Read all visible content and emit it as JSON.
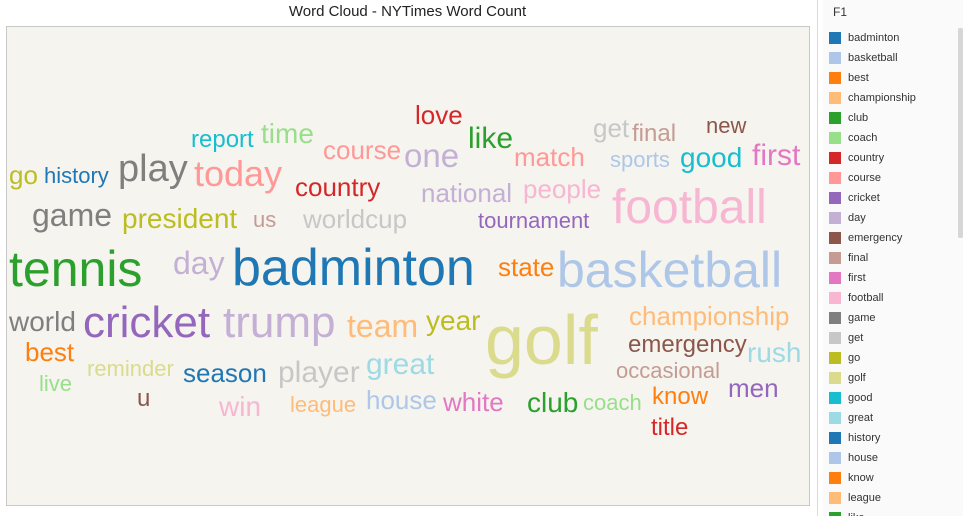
{
  "chart_data": {
    "type": "wordcloud",
    "title": "Word Cloud - NYTimes Word Count",
    "words": [
      {
        "text": "go",
        "color": "#bcbd22",
        "size": 26
      },
      {
        "text": "history",
        "color": "#1f77b4",
        "size": 22
      },
      {
        "text": "play",
        "color": "#7f7f7f",
        "size": 38
      },
      {
        "text": "report",
        "color": "#17becf",
        "size": 24
      },
      {
        "text": "time",
        "color": "#98df8a",
        "size": 28
      },
      {
        "text": "today",
        "color": "#ff9896",
        "size": 36
      },
      {
        "text": "course",
        "color": "#ff9896",
        "size": 26
      },
      {
        "text": "love",
        "color": "#d62728",
        "size": 26
      },
      {
        "text": "one",
        "color": "#c5b0d5",
        "size": 33
      },
      {
        "text": "like",
        "color": "#2ca02c",
        "size": 30
      },
      {
        "text": "match",
        "color": "#ff9896",
        "size": 26
      },
      {
        "text": "get",
        "color": "#c7c7c7",
        "size": 26
      },
      {
        "text": "final",
        "color": "#c49c94",
        "size": 24
      },
      {
        "text": "new",
        "color": "#8c564b",
        "size": 22
      },
      {
        "text": "sports",
        "color": "#aec7e8",
        "size": 22
      },
      {
        "text": "good",
        "color": "#17becf",
        "size": 28
      },
      {
        "text": "first",
        "color": "#e377c2",
        "size": 30
      },
      {
        "text": "country",
        "color": "#d62728",
        "size": 26
      },
      {
        "text": "national",
        "color": "#c5b0d5",
        "size": 26
      },
      {
        "text": "people",
        "color": "#f7b6d2",
        "size": 26
      },
      {
        "text": "football",
        "color": "#f7b6d2",
        "size": 48
      },
      {
        "text": "game",
        "color": "#7f7f7f",
        "size": 32
      },
      {
        "text": "president",
        "color": "#bcbd22",
        "size": 28
      },
      {
        "text": "us",
        "color": "#c49c94",
        "size": 22
      },
      {
        "text": "worldcup",
        "color": "#c7c7c7",
        "size": 26
      },
      {
        "text": "tournament",
        "color": "#9467bd",
        "size": 22
      },
      {
        "text": "tennis",
        "color": "#2ca02c",
        "size": 50
      },
      {
        "text": "day",
        "color": "#c5b0d5",
        "size": 32
      },
      {
        "text": "badminton",
        "color": "#1f77b4",
        "size": 52
      },
      {
        "text": "state",
        "color": "#ff7f0e",
        "size": 26
      },
      {
        "text": "basketball",
        "color": "#aec7e8",
        "size": 50
      },
      {
        "text": "world",
        "color": "#7f7f7f",
        "size": 28
      },
      {
        "text": "cricket",
        "color": "#9467bd",
        "size": 44
      },
      {
        "text": "trump",
        "color": "#c5b0d5",
        "size": 44
      },
      {
        "text": "team",
        "color": "#ffbb78",
        "size": 32
      },
      {
        "text": "year",
        "color": "#bcbd22",
        "size": 28
      },
      {
        "text": "golf",
        "color": "#dbdb8d",
        "size": 70
      },
      {
        "text": "championship",
        "color": "#ffbb78",
        "size": 26
      },
      {
        "text": "best",
        "color": "#ff7f0e",
        "size": 26
      },
      {
        "text": "emergency",
        "color": "#8c564b",
        "size": 24
      },
      {
        "text": "rush",
        "color": "#9edae5",
        "size": 28
      },
      {
        "text": "live",
        "color": "#98df8a",
        "size": 22
      },
      {
        "text": "reminder",
        "color": "#dbdb8d",
        "size": 22
      },
      {
        "text": "season",
        "color": "#1f77b4",
        "size": 26
      },
      {
        "text": "player",
        "color": "#c7c7c7",
        "size": 30
      },
      {
        "text": "great",
        "color": "#9edae5",
        "size": 30
      },
      {
        "text": "occasional",
        "color": "#c49c94",
        "size": 22
      },
      {
        "text": "men",
        "color": "#9467bd",
        "size": 26
      },
      {
        "text": "u",
        "color": "#8c564b",
        "size": 24
      },
      {
        "text": "win",
        "color": "#f7b6d2",
        "size": 28
      },
      {
        "text": "league",
        "color": "#ffbb78",
        "size": 22
      },
      {
        "text": "house",
        "color": "#aec7e8",
        "size": 26
      },
      {
        "text": "white",
        "color": "#e377c2",
        "size": 26
      },
      {
        "text": "club",
        "color": "#2ca02c",
        "size": 28
      },
      {
        "text": "coach",
        "color": "#98df8a",
        "size": 22
      },
      {
        "text": "know",
        "color": "#ff7f0e",
        "size": 24
      },
      {
        "text": "title",
        "color": "#d62728",
        "size": 24
      }
    ]
  },
  "legend": {
    "title": "F1",
    "items": [
      {
        "label": "badminton",
        "color": "#1f77b4"
      },
      {
        "label": "basketball",
        "color": "#aec7e8"
      },
      {
        "label": "best",
        "color": "#ff7f0e"
      },
      {
        "label": "championship",
        "color": "#ffbb78"
      },
      {
        "label": "club",
        "color": "#2ca02c"
      },
      {
        "label": "coach",
        "color": "#98df8a"
      },
      {
        "label": "country",
        "color": "#d62728"
      },
      {
        "label": "course",
        "color": "#ff9896"
      },
      {
        "label": "cricket",
        "color": "#9467bd"
      },
      {
        "label": "day",
        "color": "#c5b0d5"
      },
      {
        "label": "emergency",
        "color": "#8c564b"
      },
      {
        "label": "final",
        "color": "#c49c94"
      },
      {
        "label": "first",
        "color": "#e377c2"
      },
      {
        "label": "football",
        "color": "#f7b6d2"
      },
      {
        "label": "game",
        "color": "#7f7f7f"
      },
      {
        "label": "get",
        "color": "#c7c7c7"
      },
      {
        "label": "go",
        "color": "#bcbd22"
      },
      {
        "label": "golf",
        "color": "#dbdb8d"
      },
      {
        "label": "good",
        "color": "#17becf"
      },
      {
        "label": "great",
        "color": "#9edae5"
      },
      {
        "label": "history",
        "color": "#1f77b4"
      },
      {
        "label": "house",
        "color": "#aec7e8"
      },
      {
        "label": "know",
        "color": "#ff7f0e"
      },
      {
        "label": "league",
        "color": "#ffbb78"
      },
      {
        "label": "like",
        "color": "#2ca02c"
      }
    ]
  }
}
